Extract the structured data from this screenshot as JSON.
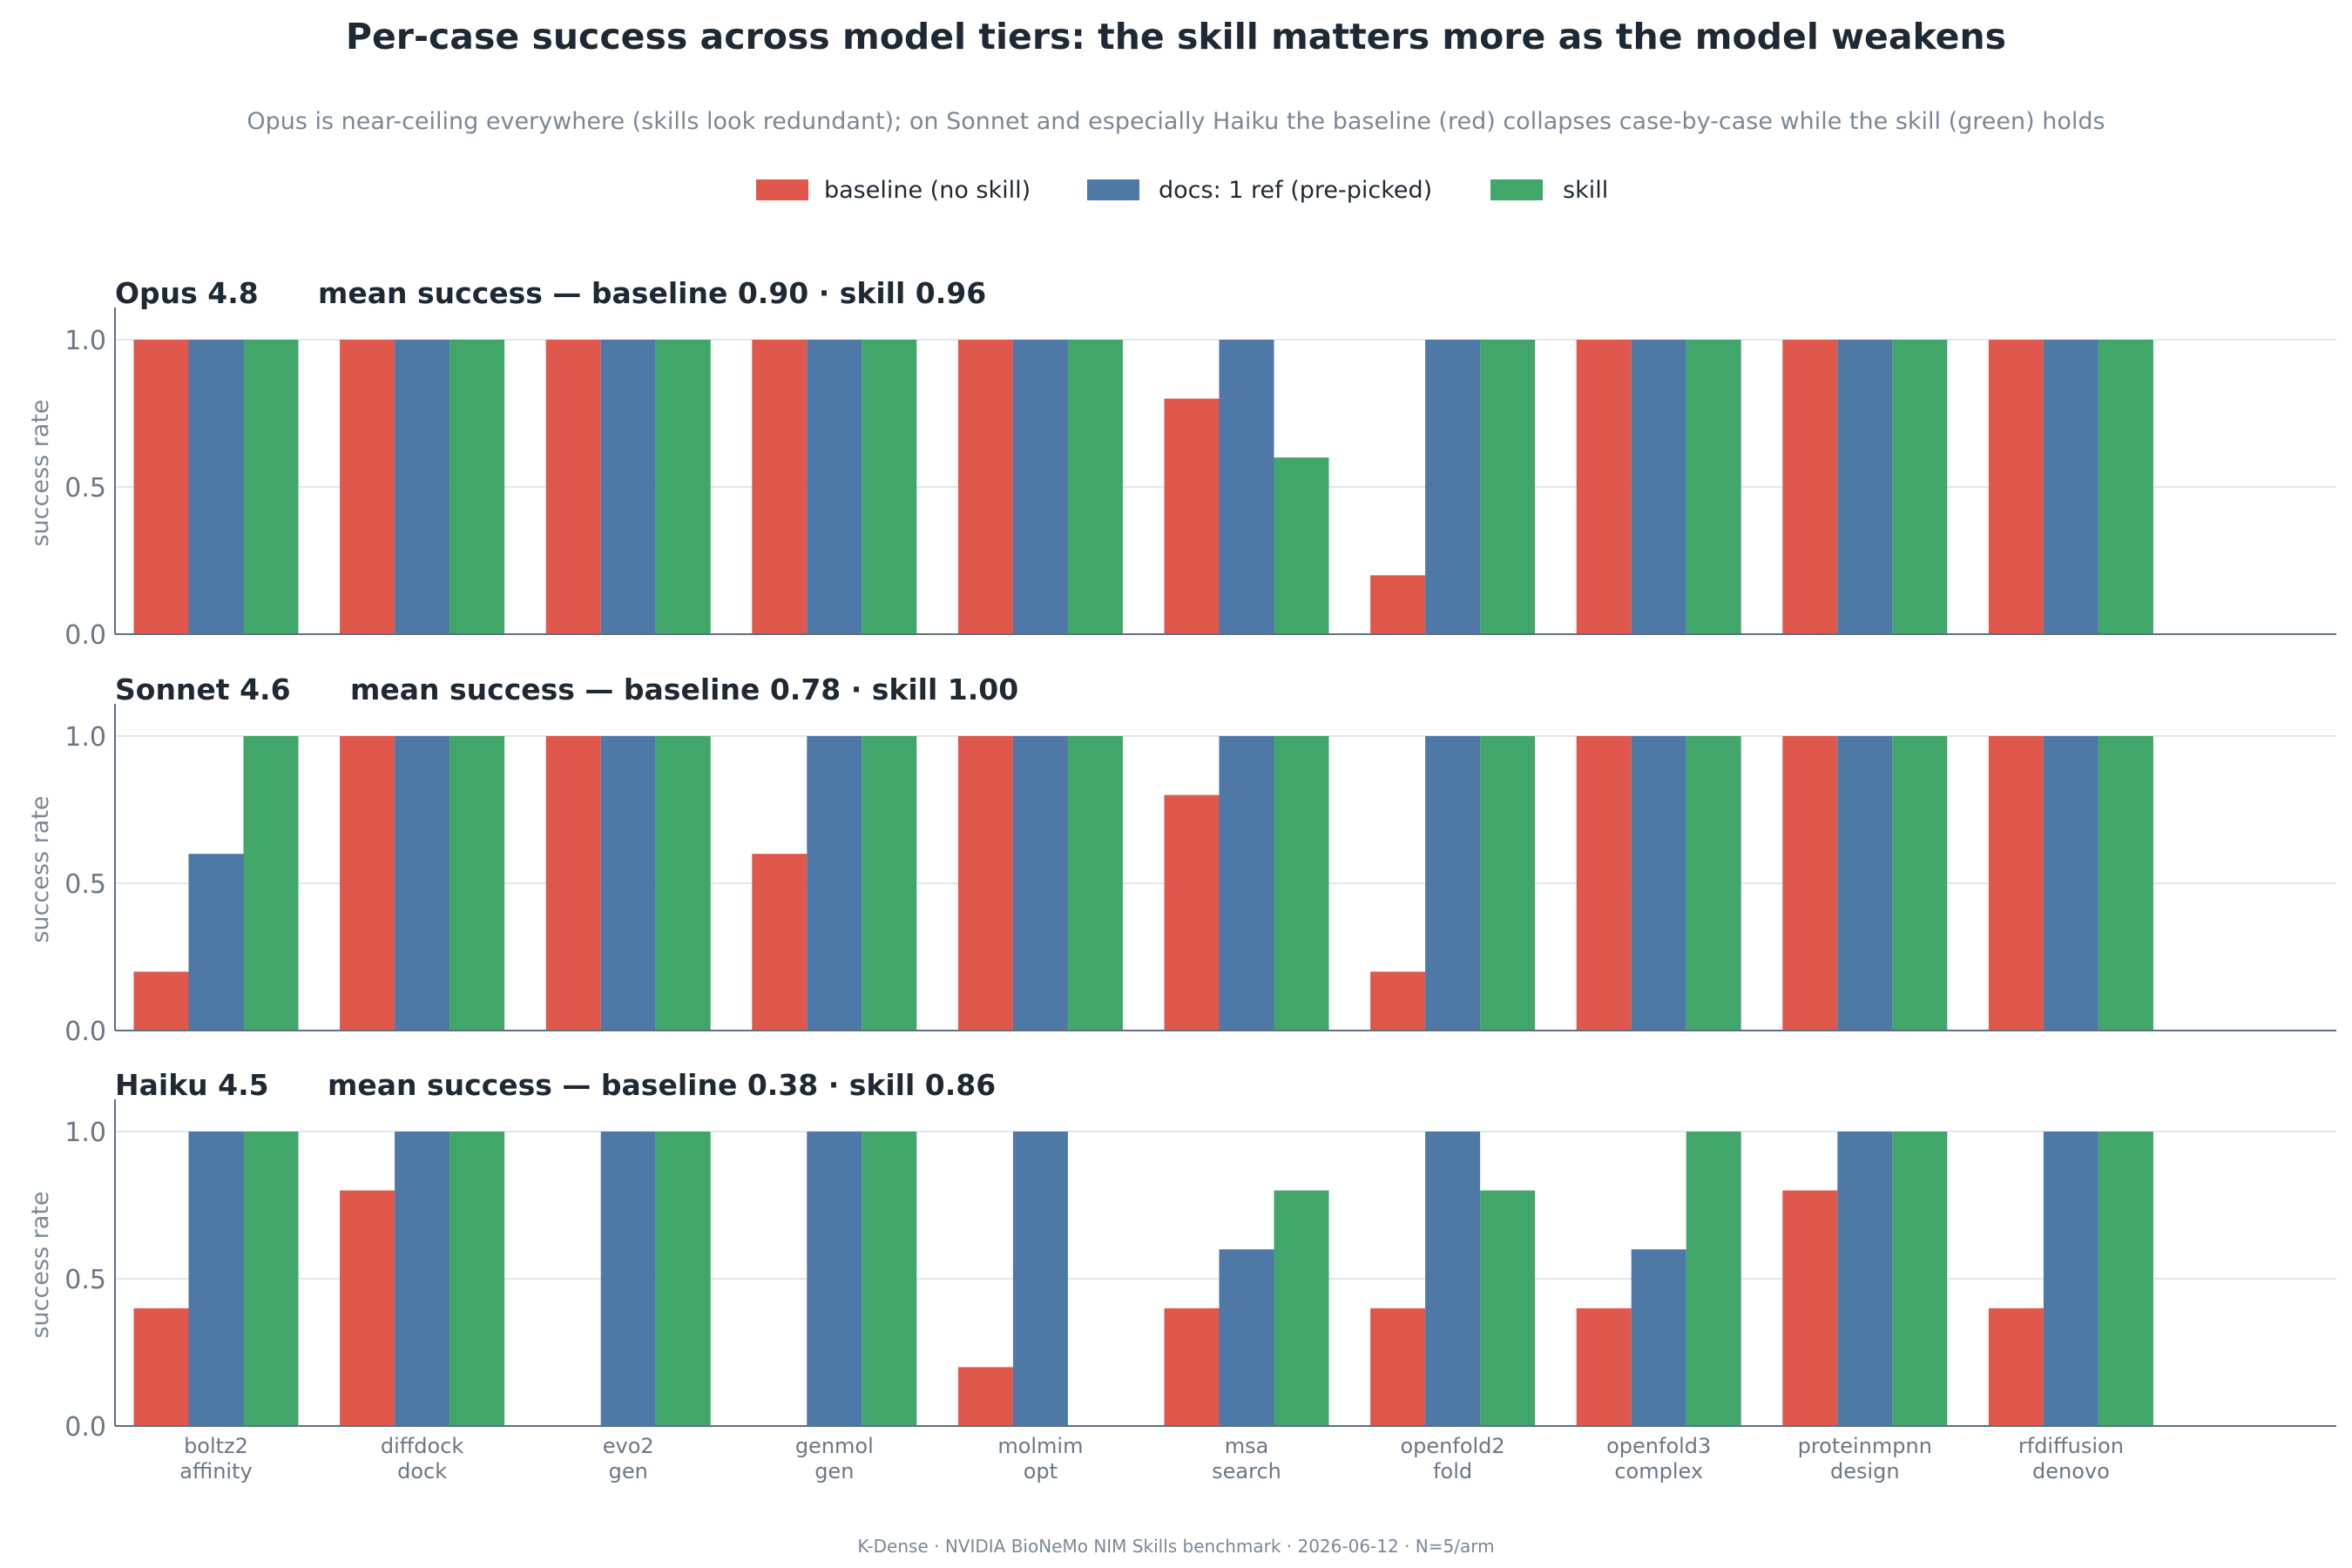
{
  "title": "Per-case success across model tiers: the skill matters more as the model weakens",
  "subtitle": "Opus is near-ceiling everywhere (skills look redundant); on Sonnet and especially Haiku the baseline (red) collapses case-by-case while the skill (green) holds",
  "footer": "K-Dense  ·  NVIDIA BioNeMo NIM Skills benchmark  ·  2026-06-12  ·  N=5/arm",
  "legend": [
    {
      "label": "baseline (no skill)",
      "color": "#e0574c"
    },
    {
      "label": "docs: 1 ref (pre-picked)",
      "color": "#4e78a6"
    },
    {
      "label": "skill",
      "color": "#40a66a"
    }
  ],
  "chart_data": {
    "type": "bar",
    "categories": [
      [
        "boltz2",
        "affinity"
      ],
      [
        "diffdock",
        "dock"
      ],
      [
        "evo2",
        "gen"
      ],
      [
        "genmol",
        "gen"
      ],
      [
        "molmim",
        "opt"
      ],
      [
        "msa",
        "search"
      ],
      [
        "openfold2",
        "fold"
      ],
      [
        "openfold3",
        "complex"
      ],
      [
        "proteinmpnn",
        "design"
      ],
      [
        "rfdiffusion",
        "denovo"
      ]
    ],
    "ylabel": "success rate",
    "ylim": [
      0,
      1.08
    ],
    "yticks": [
      "0.0",
      "0.5",
      "1.0"
    ],
    "grid": true,
    "legend_placement": "top-center",
    "panels": [
      {
        "model": "Opus 4.8",
        "summary": "mean success — baseline 0.90  ·  skill 0.96",
        "series": [
          {
            "name": "baseline (no skill)",
            "values": [
              1.0,
              1.0,
              1.0,
              1.0,
              1.0,
              0.8,
              0.2,
              1.0,
              1.0,
              1.0
            ]
          },
          {
            "name": "docs: 1 ref (pre-picked)",
            "values": [
              1.0,
              1.0,
              1.0,
              1.0,
              1.0,
              1.0,
              1.0,
              1.0,
              1.0,
              1.0
            ]
          },
          {
            "name": "skill",
            "values": [
              1.0,
              1.0,
              1.0,
              1.0,
              1.0,
              0.6,
              1.0,
              1.0,
              1.0,
              1.0
            ]
          }
        ]
      },
      {
        "model": "Sonnet 4.6",
        "summary": "mean success — baseline 0.78  ·  skill 1.00",
        "series": [
          {
            "name": "baseline (no skill)",
            "values": [
              0.2,
              1.0,
              1.0,
              0.6,
              1.0,
              0.8,
              0.2,
              1.0,
              1.0,
              1.0
            ]
          },
          {
            "name": "docs: 1 ref (pre-picked)",
            "values": [
              0.6,
              1.0,
              1.0,
              1.0,
              1.0,
              1.0,
              1.0,
              1.0,
              1.0,
              1.0
            ]
          },
          {
            "name": "skill",
            "values": [
              1.0,
              1.0,
              1.0,
              1.0,
              1.0,
              1.0,
              1.0,
              1.0,
              1.0,
              1.0
            ]
          }
        ]
      },
      {
        "model": "Haiku 4.5",
        "summary": "mean success — baseline 0.38  ·  skill 0.86",
        "series": [
          {
            "name": "baseline (no skill)",
            "values": [
              0.4,
              0.8,
              0.0,
              0.0,
              0.2,
              0.4,
              0.4,
              0.4,
              0.8,
              0.4
            ]
          },
          {
            "name": "docs: 1 ref (pre-picked)",
            "values": [
              1.0,
              1.0,
              1.0,
              1.0,
              1.0,
              0.6,
              1.0,
              0.6,
              1.0,
              1.0
            ]
          },
          {
            "name": "skill",
            "values": [
              1.0,
              1.0,
              1.0,
              1.0,
              0.0,
              0.8,
              0.8,
              1.0,
              1.0,
              1.0
            ]
          }
        ]
      }
    ]
  }
}
